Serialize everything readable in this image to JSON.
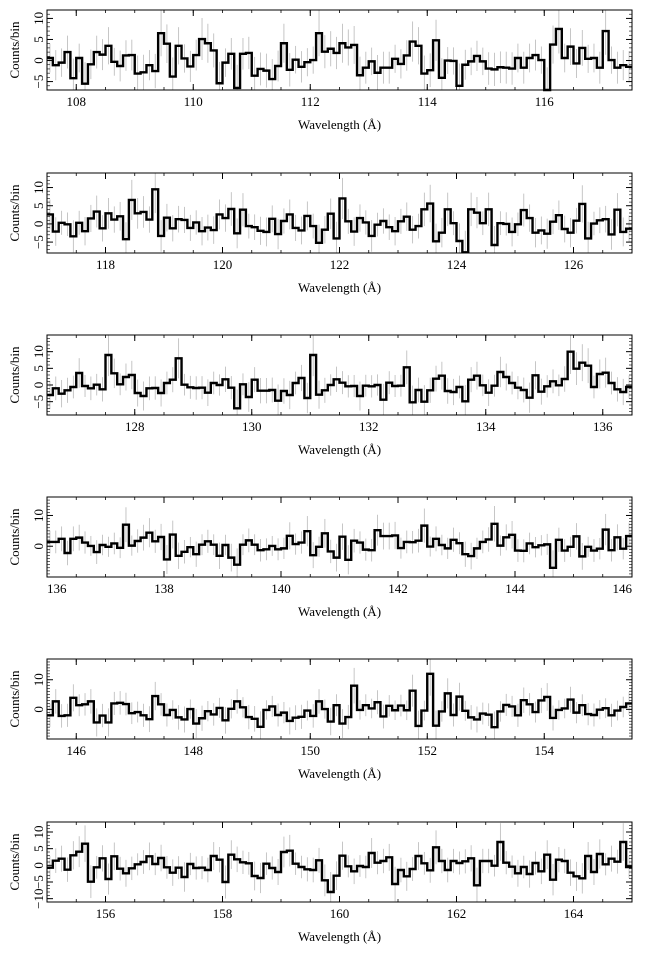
{
  "chart_data": [
    {
      "type": "line",
      "xlabel": "Wavelength (Å)",
      "ylabel": "Counts/bin",
      "xlim": [
        107.5,
        117.5
      ],
      "ylim": [
        -7,
        12
      ],
      "xticks": [
        108,
        110,
        112,
        114,
        116
      ],
      "yticks": [
        -5,
        0,
        5,
        10
      ],
      "ytick_labels": [
        "−5",
        "0",
        "5",
        "10"
      ],
      "highlights": [
        [
          109.4,
          6.5
        ],
        [
          112.1,
          6.5
        ],
        [
          114.5,
          -6
        ],
        [
          116.2,
          7.5
        ],
        [
          117.0,
          7
        ]
      ],
      "series": [
        {
          "x_start": 107.5,
          "bin_width": 0.1,
          "values": []
        }
      ]
    },
    {
      "type": "line",
      "xlabel": "Wavelength (Å)",
      "ylabel": "Counts/bin",
      "xlim": [
        117.0,
        127.0
      ],
      "ylim": [
        -8,
        14
      ],
      "xticks": [
        118,
        120,
        122,
        124,
        126
      ],
      "yticks": [
        -5,
        0,
        5,
        10
      ],
      "ytick_labels": [
        "−5",
        "0",
        "5",
        "10"
      ],
      "highlights": [
        [
          118.8,
          9.5
        ],
        [
          122.0,
          7
        ],
        [
          124.5,
          4
        ],
        [
          126.1,
          5.5
        ]
      ],
      "series": [
        {
          "x_start": 117.0,
          "bin_width": 0.1,
          "values": []
        }
      ]
    },
    {
      "type": "line",
      "xlabel": "Wavelength (Å)",
      "ylabel": "Counts/bin",
      "xlim": [
        126.5,
        136.5
      ],
      "ylim": [
        -9,
        15
      ],
      "xticks": [
        128,
        130,
        132,
        134,
        136
      ],
      "yticks": [
        -5,
        0,
        5,
        10
      ],
      "ytick_labels": [
        "−5",
        "0",
        "5",
        "10"
      ],
      "highlights": [
        [
          127.5,
          9
        ],
        [
          128.7,
          8
        ],
        [
          129.7,
          -7
        ],
        [
          131.0,
          9
        ],
        [
          135.4,
          10
        ]
      ],
      "series": [
        {
          "x_start": 126.5,
          "bin_width": 0.1,
          "values": []
        }
      ]
    },
    {
      "type": "line",
      "xlabel": "Wavelength (Å)",
      "ylabel": "Counts/bin",
      "xlim": [
        136,
        146
      ],
      "ylim": [
        -10,
        16
      ],
      "xticks": [
        136,
        138,
        140,
        142,
        144,
        146
      ],
      "yticks": [
        0,
        10
      ],
      "ytick_labels": [
        "0",
        "10"
      ],
      "highlights": [
        [
          137.3,
          7
        ],
        [
          139.2,
          -6
        ],
        [
          144.6,
          11
        ],
        [
          144.6,
          -7
        ]
      ],
      "series": [
        {
          "x_start": 136.0,
          "bin_width": 0.1,
          "values": []
        }
      ]
    },
    {
      "type": "line",
      "xlabel": "Wavelength (Å)",
      "ylabel": "Counts/bin",
      "xlim": [
        145.5,
        155.5
      ],
      "ylim": [
        -10,
        17
      ],
      "xticks": [
        146,
        148,
        150,
        152,
        154
      ],
      "yticks": [
        0,
        10
      ],
      "ytick_labels": [
        "0",
        "10"
      ],
      "highlights": [
        [
          150.7,
          8
        ],
        [
          152.0,
          12
        ],
        [
          153.1,
          -6
        ]
      ],
      "series": [
        {
          "x_start": 145.5,
          "bin_width": 0.1,
          "values": []
        }
      ]
    },
    {
      "type": "line",
      "xlabel": "Wavelength (Å)",
      "ylabel": "Counts/bin",
      "xlim": [
        155,
        165
      ],
      "ylim": [
        -11,
        13
      ],
      "xticks": [
        156,
        158,
        160,
        162,
        164
      ],
      "yticks": [
        -10,
        -5,
        0,
        5,
        10
      ],
      "ytick_labels": [
        "−10",
        "−5",
        "0",
        "5",
        "10"
      ],
      "highlights": [
        [
          159.8,
          -8
        ],
        [
          162.7,
          7
        ],
        [
          164.8,
          7
        ]
      ],
      "series": [
        {
          "x_start": 155.0,
          "bin_width": 0.1,
          "values": []
        }
      ]
    }
  ]
}
